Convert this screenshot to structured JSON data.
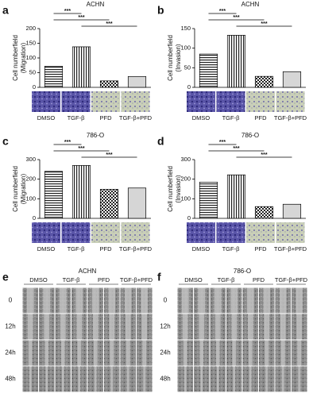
{
  "chart_data": [
    {
      "type": "bar",
      "panel": "a",
      "title": "ACHN",
      "ylabel": "Cell numberfield",
      "ylabel_sub": "(Migration)",
      "categories": [
        "DMSO",
        "TGF-β",
        "PFD",
        "TGF-β+PFD"
      ],
      "values": [
        72,
        138,
        22,
        37
      ],
      "bar_fills": [
        "hlines",
        "vlines",
        "checker",
        "gray"
      ],
      "ylim": [
        0,
        200
      ],
      "yticks": [
        0,
        50,
        100,
        150,
        200
      ],
      "comparisons": [
        {
          "from": "DMSO",
          "to": "TGF-β",
          "label": "***"
        },
        {
          "from": "DMSO",
          "to": "PFD",
          "label": "***"
        },
        {
          "from": "TGF-β",
          "to": "TGF-β+PFD",
          "label": "***"
        }
      ]
    },
    {
      "type": "bar",
      "panel": "b",
      "title": "ACHN",
      "ylabel": "Cell numberfield",
      "ylabel_sub": "(Invasion)",
      "categories": [
        "DMSO",
        "TGF-β",
        "PFD",
        "TGF-β+PFD"
      ],
      "values": [
        85,
        133,
        28,
        40
      ],
      "bar_fills": [
        "hlines",
        "vlines",
        "checker",
        "gray"
      ],
      "ylim": [
        0,
        150
      ],
      "yticks": [
        0,
        50,
        100,
        150
      ],
      "comparisons": [
        {
          "from": "DMSO",
          "to": "TGF-β",
          "label": "***"
        },
        {
          "from": "DMSO",
          "to": "PFD",
          "label": "***"
        },
        {
          "from": "TGF-β",
          "to": "TGF-β+PFD",
          "label": "***"
        }
      ]
    },
    {
      "type": "bar",
      "panel": "c",
      "title": "786-O",
      "ylabel": "Cell numberfield",
      "ylabel_sub": "(Migration)",
      "categories": [
        "DMSO",
        "TGF-β",
        "PFD",
        "TGF-β+PFD"
      ],
      "values": [
        240,
        270,
        148,
        155
      ],
      "bar_fills": [
        "hlines",
        "vlines",
        "checker",
        "gray"
      ],
      "ylim": [
        0,
        300
      ],
      "yticks": [
        0,
        100,
        200,
        300
      ],
      "comparisons": [
        {
          "from": "DMSO",
          "to": "TGF-β",
          "label": "***"
        },
        {
          "from": "DMSO",
          "to": "PFD",
          "label": "***"
        },
        {
          "from": "TGF-β",
          "to": "TGF-β+PFD",
          "label": "***"
        }
      ]
    },
    {
      "type": "bar",
      "panel": "d",
      "title": "786-O",
      "ylabel": "Cell numberfield",
      "ylabel_sub": "(Invasion)",
      "categories": [
        "DMSO",
        "TGF-β",
        "PFD",
        "TGF-β+PFD"
      ],
      "values": [
        185,
        222,
        60,
        72
      ],
      "bar_fills": [
        "hlines",
        "vlines",
        "checker",
        "gray"
      ],
      "ylim": [
        0,
        300
      ],
      "yticks": [
        0,
        100,
        200,
        300
      ],
      "comparisons": [
        {
          "from": "DMSO",
          "to": "TGF-β",
          "label": "***"
        },
        {
          "from": "DMSO",
          "to": "PFD",
          "label": "***"
        },
        {
          "from": "TGF-β",
          "to": "TGF-β+PFD",
          "label": "***"
        }
      ]
    }
  ],
  "figures": [
    {
      "panel": "e",
      "title": "ACHN",
      "columns": [
        "DMSO",
        "TGF-β",
        "PFD",
        "TGF-β+PFD"
      ],
      "rows": [
        "0",
        "12h",
        "24h",
        "48h"
      ]
    },
    {
      "panel": "f",
      "title": "786-O",
      "columns": [
        "DMSO",
        "TGF-β",
        "PFD",
        "TGF-β+PFD"
      ],
      "rows": [
        "0",
        "12h",
        "24h",
        "48h"
      ]
    }
  ]
}
